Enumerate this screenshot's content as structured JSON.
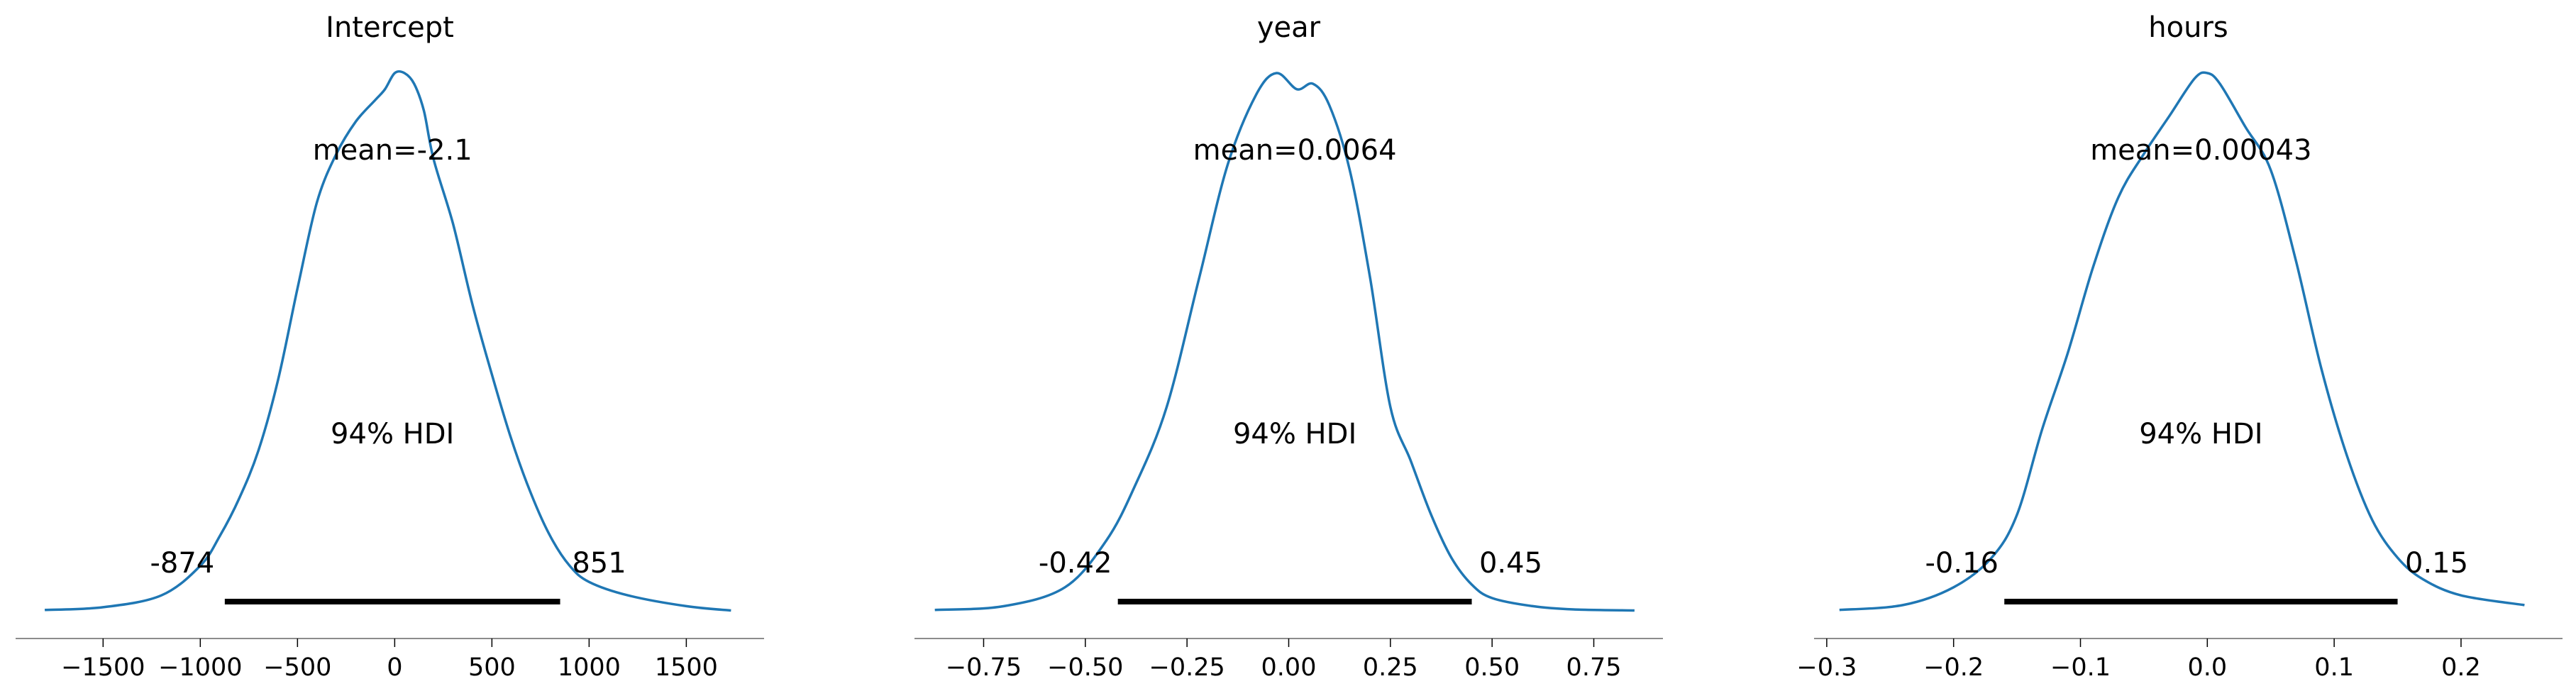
{
  "chart_data": [
    {
      "type": "area",
      "title": "Intercept",
      "xlim": [
        -1950,
        1900
      ],
      "xticks": [
        -1500,
        -1000,
        -500,
        0,
        500,
        1000,
        1500
      ],
      "tick_labels": [
        "−1500",
        "−1000",
        "−500",
        "0",
        "500",
        "1000",
        "1500"
      ],
      "mean_label": "mean=-2.1",
      "hdi_label": "94% HDI",
      "hdi": [
        -874,
        851
      ],
      "hdi_low_label": "-874",
      "hdi_high_label": "851",
      "line_color": "#1f77b4",
      "density": {
        "x": [
          -1800,
          -1500,
          -1200,
          -1000,
          -900,
          -800,
          -700,
          -600,
          -500,
          -400,
          -300,
          -200,
          -100,
          -50,
          0,
          50,
          100,
          150,
          200,
          300,
          400,
          500,
          600,
          700,
          800,
          900,
          1000,
          1200,
          1500,
          1730
        ],
        "y": [
          0.003,
          0.008,
          0.03,
          0.085,
          0.14,
          0.21,
          0.3,
          0.43,
          0.6,
          0.76,
          0.85,
          0.91,
          0.95,
          0.97,
          1.0,
          1.0,
          0.98,
          0.93,
          0.84,
          0.72,
          0.57,
          0.44,
          0.32,
          0.22,
          0.14,
          0.085,
          0.055,
          0.03,
          0.01,
          0.002
        ]
      }
    },
    {
      "type": "area",
      "title": "year",
      "xlim": [
        -0.92,
        0.92
      ],
      "xticks": [
        -0.75,
        -0.5,
        -0.25,
        0.0,
        0.25,
        0.5,
        0.75
      ],
      "tick_labels": [
        "−0.75",
        "−0.50",
        "−0.25",
        "0.00",
        "0.25",
        "0.50",
        "0.75"
      ],
      "mean_label": "mean=0.0064",
      "hdi_label": "94% HDI",
      "hdi": [
        -0.42,
        0.45
      ],
      "hdi_low_label": "-0.42",
      "hdi_high_label": "0.45",
      "line_color": "#1f77b4",
      "density": {
        "x": [
          -0.87,
          -0.7,
          -0.55,
          -0.45,
          -0.38,
          -0.3,
          -0.22,
          -0.15,
          -0.08,
          -0.03,
          0.02,
          0.06,
          0.1,
          0.15,
          0.2,
          0.25,
          0.3,
          0.35,
          0.4,
          0.45,
          0.5,
          0.6,
          0.7,
          0.85
        ],
        "y": [
          0.003,
          0.01,
          0.045,
          0.13,
          0.23,
          0.38,
          0.62,
          0.83,
          0.96,
          1.0,
          0.97,
          0.98,
          0.94,
          0.82,
          0.62,
          0.38,
          0.28,
          0.18,
          0.1,
          0.05,
          0.025,
          0.01,
          0.004,
          0.002
        ]
      }
    },
    {
      "type": "area",
      "title": "hours",
      "xlim": [
        -0.31,
        0.28
      ],
      "xticks": [
        -0.3,
        -0.2,
        -0.1,
        0.0,
        0.1,
        0.2
      ],
      "tick_labels": [
        "−0.3",
        "−0.2",
        "−0.1",
        "0.0",
        "0.1",
        "0.2"
      ],
      "mean_label": "mean=0.00043",
      "hdi_label": "94% HDI",
      "hdi": [
        -0.16,
        0.15
      ],
      "hdi_low_label": "-0.16",
      "hdi_high_label": "0.15",
      "line_color": "#1f77b4",
      "density": {
        "x": [
          -0.29,
          -0.24,
          -0.2,
          -0.17,
          -0.15,
          -0.13,
          -0.11,
          -0.09,
          -0.07,
          -0.05,
          -0.03,
          -0.01,
          0.0,
          0.01,
          0.03,
          0.05,
          0.07,
          0.09,
          0.11,
          0.13,
          0.15,
          0.17,
          0.2,
          0.25
        ],
        "y": [
          0.003,
          0.012,
          0.045,
          0.1,
          0.18,
          0.34,
          0.48,
          0.64,
          0.77,
          0.85,
          0.92,
          0.99,
          1.0,
          0.98,
          0.9,
          0.82,
          0.65,
          0.45,
          0.29,
          0.17,
          0.1,
          0.06,
          0.03,
          0.012
        ]
      }
    }
  ]
}
